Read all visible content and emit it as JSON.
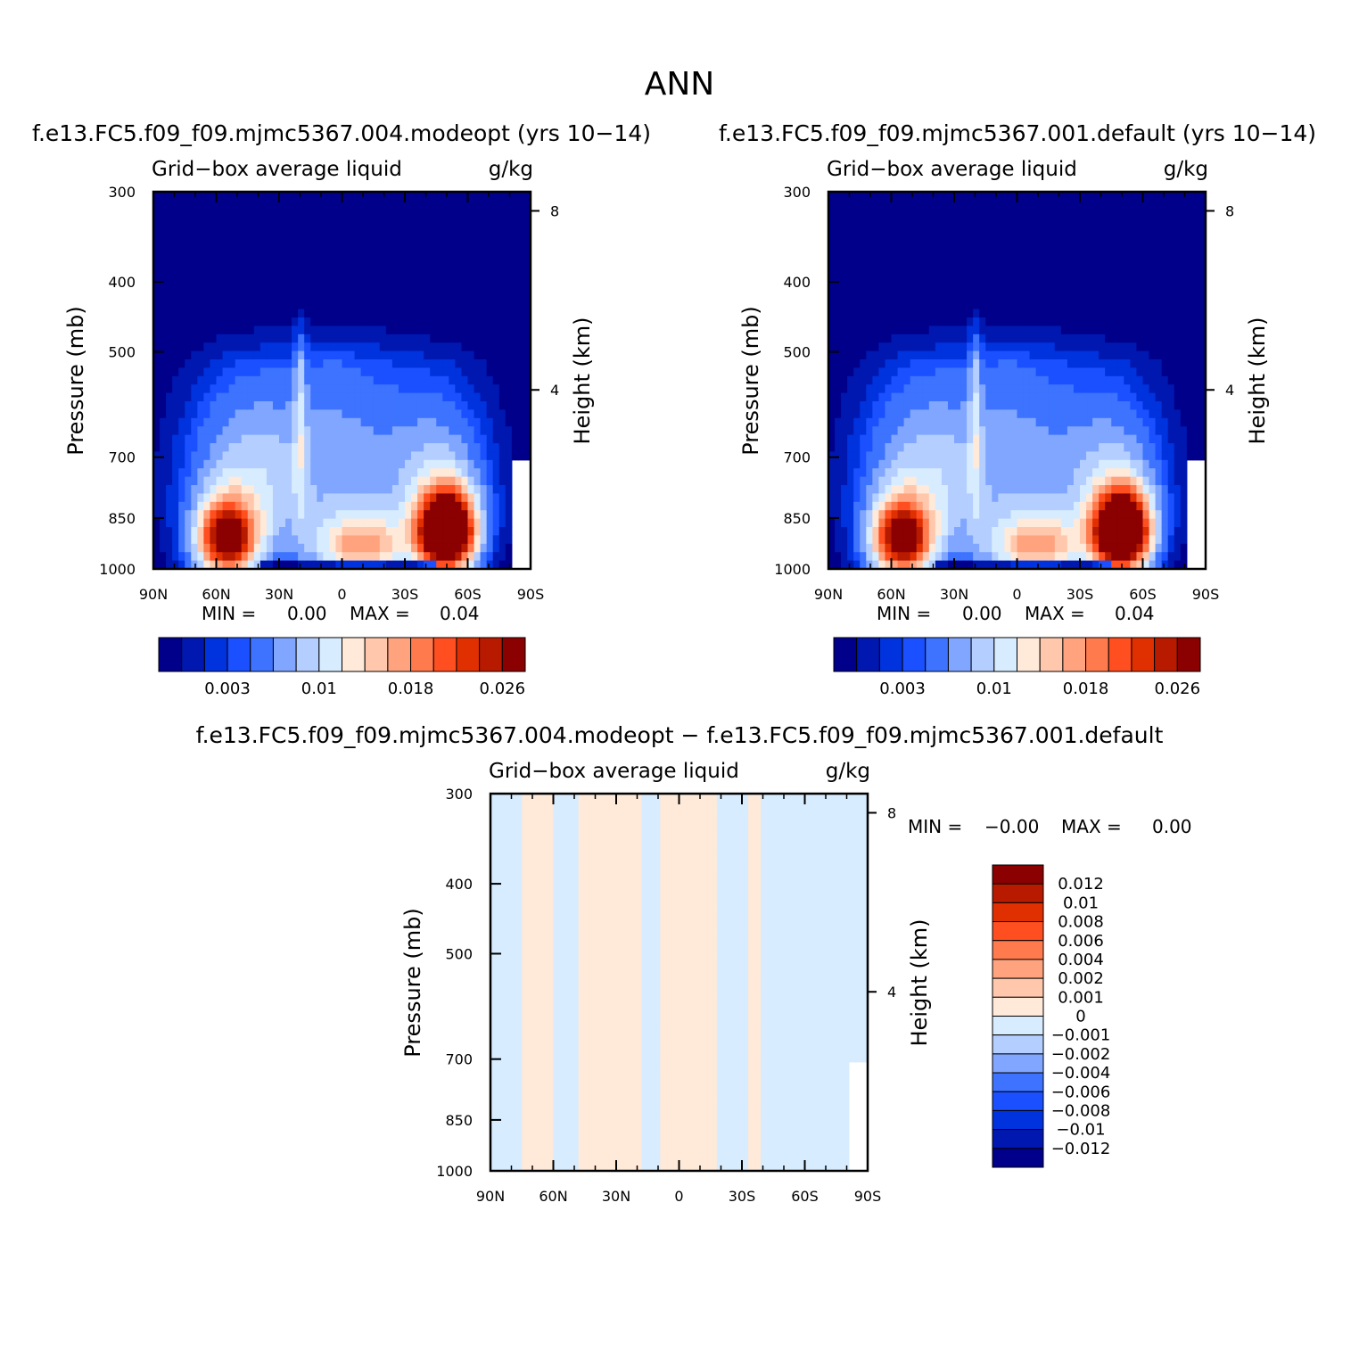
{
  "figure": {
    "title": "ANN",
    "panel_a_title": "f.e13.FC5.f09_f09.mjmc5367.004.modeopt (yrs 10−14)",
    "panel_b_title": "f.e13.FC5.f09_f09.mjmc5367.001.default (yrs 10−14)",
    "panel_c_title": "f.e13.FC5.f09_f09.mjmc5367.004.modeopt − f.e13.FC5.f09_f09.mjmc5367.001.default"
  },
  "colors": {
    "abs_levels": [
      "#00008b",
      "#0018b0",
      "#0032dd",
      "#1a50ff",
      "#3d73ff",
      "#80a6ff",
      "#b4cfff",
      "#d7ecff",
      "#ffe9d9",
      "#ffc8ad",
      "#ffa37f",
      "#ff7a4d",
      "#ff4e20",
      "#e02f00",
      "#b81a00",
      "#8b0000"
    ],
    "diff_levels": [
      "#00008b",
      "#0018b0",
      "#0032dd",
      "#1a50ff",
      "#3d73ff",
      "#80a6ff",
      "#b4cfff",
      "#d7ecff",
      "#ffe9d9",
      "#ffc8ad",
      "#ffa37f",
      "#ff7a4d",
      "#ff4e20",
      "#e02f00",
      "#b81a00",
      "#8b0000"
    ]
  },
  "chart_data": [
    {
      "type": "heatmap",
      "id": "modeopt",
      "title": "f.e13.FC5.f09_f09.mjmc5367.004.modeopt (yrs 10−14)",
      "variable": "Grid−box average liquid",
      "units": "g/kg",
      "xlabel": "",
      "ylabel": "Pressure (mb)",
      "y2label": "Height (km)",
      "x_ticks": [
        "90N",
        "60N",
        "30N",
        "0",
        "30S",
        "60S",
        "90S"
      ],
      "x_range": [
        90,
        -90
      ],
      "y_ticks": [
        "300",
        "400",
        "500",
        "700",
        "850",
        "1000"
      ],
      "y_tick_values": [
        300,
        400,
        500,
        700,
        850,
        1000
      ],
      "y_range": [
        300,
        1000
      ],
      "y2_ticks": [
        "8",
        "4"
      ],
      "stats": {
        "min_label": "MIN =",
        "min": "0.00",
        "max_label": "MAX =",
        "max": "0.04"
      },
      "colorbar_labels": [
        "0.003",
        "0.01",
        "0.018",
        "0.026"
      ],
      "levels": [
        0.001,
        0.002,
        0.003,
        0.004,
        0.006,
        0.008,
        0.01,
        0.012,
        0.014,
        0.016,
        0.018,
        0.02,
        0.022,
        0.024,
        0.026
      ],
      "field": {
        "background": 0.0,
        "features": [
          {
            "name": "sh-stratocumulus",
            "lat": -50,
            "p": 890,
            "dlat": 13,
            "dp": 110,
            "peak": 0.04
          },
          {
            "name": "nh-stratocumulus",
            "lat": 55,
            "p": 910,
            "dlat": 14,
            "dp": 110,
            "peak": 0.026
          },
          {
            "name": "tropical-low",
            "lat": -10,
            "p": 930,
            "dlat": 22,
            "dp": 90,
            "peak": 0.014
          },
          {
            "name": "tropical-deep",
            "lat": 0,
            "p": 720,
            "dlat": 30,
            "dp": 280,
            "peak": 0.006
          },
          {
            "name": "nh-midlat",
            "lat": 45,
            "p": 760,
            "dlat": 30,
            "dp": 230,
            "peak": 0.009
          },
          {
            "name": "sh-midlat",
            "lat": -45,
            "p": 760,
            "dlat": 26,
            "dp": 210,
            "peak": 0.008
          },
          {
            "name": "itcz-spike",
            "lat": 20,
            "p": 600,
            "dlat": 3,
            "dp": 260,
            "peak": 0.005
          }
        ],
        "surface_dip": {
          "lat_min": 40,
          "lat_max": -45,
          "p": 990,
          "depth": 0.8
        },
        "missing_south_of": -80
      }
    },
    {
      "type": "heatmap",
      "id": "default",
      "title": "f.e13.FC5.f09_f09.mjmc5367.001.default (yrs 10−14)",
      "variable": "Grid−box average liquid",
      "units": "g/kg",
      "xlabel": "",
      "ylabel": "Pressure (mb)",
      "y2label": "Height (km)",
      "x_ticks": [
        "90N",
        "60N",
        "30N",
        "0",
        "30S",
        "60S",
        "90S"
      ],
      "x_range": [
        90,
        -90
      ],
      "y_ticks": [
        "300",
        "400",
        "500",
        "700",
        "850",
        "1000"
      ],
      "y_tick_values": [
        300,
        400,
        500,
        700,
        850,
        1000
      ],
      "y_range": [
        300,
        1000
      ],
      "y2_ticks": [
        "8",
        "4"
      ],
      "stats": {
        "min_label": "MIN =",
        "min": "0.00",
        "max_label": "MAX =",
        "max": "0.04"
      },
      "colorbar_labels": [
        "0.003",
        "0.01",
        "0.018",
        "0.026"
      ],
      "levels": [
        0.001,
        0.002,
        0.003,
        0.004,
        0.006,
        0.008,
        0.01,
        0.012,
        0.014,
        0.016,
        0.018,
        0.02,
        0.022,
        0.024,
        0.026
      ],
      "field": {
        "background": 0.0,
        "features": [
          {
            "name": "sh-stratocumulus",
            "lat": -50,
            "p": 890,
            "dlat": 13,
            "dp": 110,
            "peak": 0.04
          },
          {
            "name": "nh-stratocumulus",
            "lat": 55,
            "p": 910,
            "dlat": 14,
            "dp": 110,
            "peak": 0.026
          },
          {
            "name": "tropical-low",
            "lat": -10,
            "p": 930,
            "dlat": 22,
            "dp": 90,
            "peak": 0.014
          },
          {
            "name": "tropical-deep",
            "lat": 0,
            "p": 720,
            "dlat": 30,
            "dp": 280,
            "peak": 0.006
          },
          {
            "name": "nh-midlat",
            "lat": 45,
            "p": 760,
            "dlat": 30,
            "dp": 230,
            "peak": 0.009
          },
          {
            "name": "sh-midlat",
            "lat": -45,
            "p": 760,
            "dlat": 26,
            "dp": 210,
            "peak": 0.008
          },
          {
            "name": "itcz-spike",
            "lat": 20,
            "p": 600,
            "dlat": 3,
            "dp": 260,
            "peak": 0.005
          }
        ],
        "surface_dip": {
          "lat_min": 40,
          "lat_max": -45,
          "p": 990,
          "depth": 0.8
        },
        "missing_south_of": -80
      }
    },
    {
      "type": "heatmap",
      "id": "difference",
      "title": "f.e13.FC5.f09_f09.mjmc5367.004.modeopt − f.e13.FC5.f09_f09.mjmc5367.001.default",
      "variable": "Grid−box average liquid",
      "units": "g/kg",
      "xlabel": "",
      "ylabel": "Pressure (mb)",
      "y2label": "Height (km)",
      "x_ticks": [
        "90N",
        "60N",
        "30N",
        "0",
        "30S",
        "60S",
        "90S"
      ],
      "x_range": [
        90,
        -90
      ],
      "y_ticks": [
        "300",
        "400",
        "500",
        "700",
        "850",
        "1000"
      ],
      "y_tick_values": [
        300,
        400,
        500,
        700,
        850,
        1000
      ],
      "y_range": [
        300,
        1000
      ],
      "y2_ticks": [
        "8",
        "4"
      ],
      "stats": {
        "min_label": "MIN =",
        "min": "−0.00",
        "max_label": "MAX =",
        "max": "0.00"
      },
      "colorbar_labels": [
        "0.012",
        "0.01",
        "0.008",
        "0.006",
        "0.004",
        "0.002",
        "0.001",
        "0",
        "−0.001",
        "−0.002",
        "−0.004",
        "−0.006",
        "−0.008",
        "−0.01",
        "−0.012"
      ],
      "levels": [
        -0.012,
        -0.01,
        -0.008,
        -0.006,
        -0.004,
        -0.002,
        -0.001,
        0,
        0.001,
        0.002,
        0.004,
        0.006,
        0.008,
        0.01,
        0.012
      ],
      "field": {
        "sign_bands": [
          {
            "lat_from": 90,
            "lat_to": 76,
            "sign": -1
          },
          {
            "lat_from": 76,
            "lat_to": 60,
            "sign": 1
          },
          {
            "lat_from": 60,
            "lat_to": 48,
            "sign": -1
          },
          {
            "lat_from": 48,
            "lat_to": 18,
            "sign": 1
          },
          {
            "lat_from": 18,
            "lat_to": 8,
            "sign": -1
          },
          {
            "lat_from": 8,
            "lat_to": -18,
            "sign": 1
          },
          {
            "lat_from": -18,
            "lat_to": -32,
            "sign": -1
          },
          {
            "lat_from": -32,
            "lat_to": -40,
            "sign": 1
          },
          {
            "lat_from": -40,
            "lat_to": -90,
            "sign": -1
          }
        ],
        "magnitude": 0.0005,
        "missing_south_of": -80
      }
    }
  ]
}
